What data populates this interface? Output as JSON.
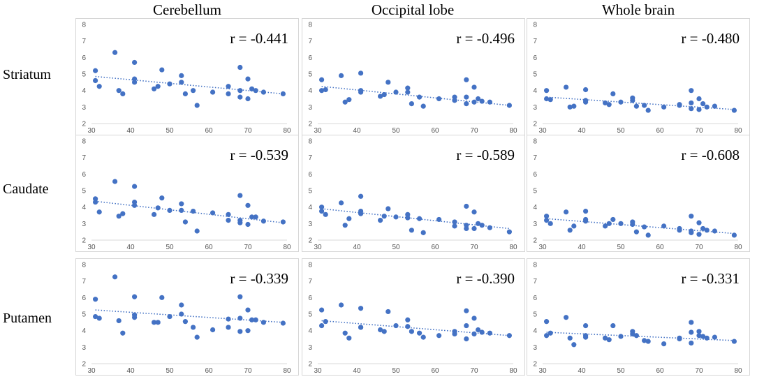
{
  "chart_data": {
    "type": "scatter",
    "columns": [
      "Cerebellum",
      "Occipital lobe",
      "Whole brain"
    ],
    "rows": [
      "Striatum",
      "Caudate",
      "Putamen"
    ],
    "xlim": [
      30,
      80
    ],
    "ylim": [
      2,
      8
    ],
    "xticks": [
      "30",
      "40",
      "50",
      "60",
      "70",
      "80"
    ],
    "yticks": [
      "2",
      "3",
      "4",
      "5",
      "6",
      "7",
      "8"
    ],
    "x": [
      31,
      31,
      32,
      36,
      37,
      38,
      41,
      41,
      41,
      46,
      47,
      48,
      50,
      53,
      53,
      54,
      56,
      57,
      61,
      65,
      65,
      68,
      68,
      68,
      70,
      70,
      71,
      72,
      74,
      79
    ],
    "panels": [
      {
        "row": 0,
        "col": 0,
        "r_label": "r = -0.441",
        "trend": [
          4.85,
          3.8
        ],
        "y": [
          5.2,
          4.6,
          4.25,
          6.3,
          4.0,
          3.8,
          5.7,
          4.7,
          4.5,
          4.1,
          4.25,
          5.25,
          4.4,
          4.9,
          4.5,
          3.8,
          4.0,
          3.1,
          3.9,
          4.25,
          3.8,
          5.4,
          4.0,
          3.6,
          4.7,
          3.5,
          4.1,
          4.0,
          3.9,
          3.8
        ]
      },
      {
        "row": 0,
        "col": 1,
        "r_label": "r = -0.496",
        "trend": [
          4.25,
          3.1
        ],
        "y": [
          4.65,
          4.0,
          4.05,
          4.9,
          3.3,
          3.45,
          5.05,
          4.0,
          3.9,
          3.65,
          3.75,
          4.5,
          3.9,
          4.15,
          3.9,
          3.2,
          3.6,
          3.05,
          3.5,
          3.6,
          3.4,
          4.65,
          3.6,
          3.2,
          4.2,
          3.3,
          3.5,
          3.35,
          3.3,
          3.1
        ]
      },
      {
        "row": 0,
        "col": 2,
        "r_label": "r = -0.480",
        "trend": [
          3.6,
          2.85
        ],
        "y": [
          4.0,
          3.5,
          3.45,
          4.2,
          3.0,
          3.05,
          4.05,
          3.4,
          3.3,
          3.25,
          3.15,
          3.8,
          3.3,
          3.55,
          3.4,
          3.05,
          3.1,
          2.8,
          3.0,
          3.1,
          3.15,
          4.0,
          3.25,
          2.9,
          3.5,
          2.85,
          3.2,
          3.0,
          3.05,
          2.8
        ]
      },
      {
        "row": 1,
        "col": 0,
        "r_label": "r = -0.539",
        "trend": [
          4.35,
          3.05
        ],
        "y": [
          4.5,
          4.3,
          3.7,
          5.55,
          3.45,
          3.6,
          5.25,
          4.3,
          4.1,
          3.55,
          3.95,
          4.55,
          3.8,
          4.2,
          3.8,
          3.1,
          3.75,
          2.55,
          3.65,
          3.55,
          3.2,
          4.7,
          3.2,
          3.05,
          4.1,
          2.95,
          3.4,
          3.4,
          3.15,
          3.1
        ]
      },
      {
        "row": 1,
        "col": 1,
        "r_label": "r = -0.589",
        "trend": [
          3.9,
          2.7
        ],
        "y": [
          4.0,
          3.75,
          3.55,
          4.25,
          2.9,
          3.3,
          4.65,
          3.75,
          3.6,
          3.2,
          3.45,
          3.9,
          3.4,
          3.55,
          3.35,
          2.6,
          3.3,
          2.45,
          3.25,
          3.1,
          2.85,
          4.05,
          2.9,
          2.7,
          3.7,
          2.7,
          3.0,
          2.9,
          2.75,
          2.5
        ]
      },
      {
        "row": 1,
        "col": 2,
        "r_label": "r = -0.608",
        "trend": [
          3.3,
          2.4
        ],
        "y": [
          3.45,
          3.2,
          3.0,
          3.7,
          2.6,
          2.85,
          3.75,
          3.15,
          3.25,
          2.85,
          3.0,
          3.25,
          3.0,
          2.95,
          3.1,
          2.5,
          2.8,
          2.3,
          2.85,
          2.6,
          2.7,
          3.45,
          2.55,
          2.45,
          3.05,
          2.35,
          2.7,
          2.6,
          2.55,
          2.3
        ]
      },
      {
        "row": 2,
        "col": 0,
        "r_label": "r = -0.339",
        "trend": [
          5.25,
          4.5
        ],
        "y": [
          5.9,
          4.85,
          4.75,
          7.25,
          4.6,
          3.85,
          6.05,
          4.95,
          4.8,
          4.5,
          4.5,
          6.0,
          4.85,
          5.55,
          5.0,
          4.55,
          4.2,
          3.6,
          4.05,
          4.7,
          4.2,
          6.05,
          4.75,
          3.95,
          5.25,
          4.0,
          4.65,
          4.65,
          4.5,
          4.45
        ]
      },
      {
        "row": 2,
        "col": 1,
        "r_label": "r = -0.390",
        "trend": [
          4.6,
          3.7
        ],
        "y": [
          5.25,
          4.3,
          4.55,
          5.55,
          3.85,
          3.55,
          5.35,
          4.2,
          4.2,
          4.05,
          3.95,
          5.15,
          4.3,
          4.65,
          4.25,
          3.95,
          3.85,
          3.6,
          3.7,
          3.95,
          3.8,
          5.2,
          4.3,
          3.5,
          4.75,
          3.8,
          4.05,
          3.9,
          3.85,
          3.7
        ]
      },
      {
        "row": 2,
        "col": 2,
        "r_label": "r = -0.331",
        "trend": [
          3.9,
          3.4
        ],
        "y": [
          4.55,
          3.7,
          3.85,
          4.8,
          3.55,
          3.15,
          4.3,
          3.7,
          3.6,
          3.55,
          3.45,
          4.3,
          3.65,
          3.95,
          3.8,
          3.7,
          3.4,
          3.35,
          3.2,
          3.55,
          3.5,
          4.5,
          3.9,
          3.25,
          3.95,
          3.7,
          3.65,
          3.55,
          3.6,
          3.35
        ]
      }
    ]
  },
  "colors": {
    "point": "#4472C4",
    "trend": "#4472C4",
    "axis": "#d9d9d9"
  }
}
